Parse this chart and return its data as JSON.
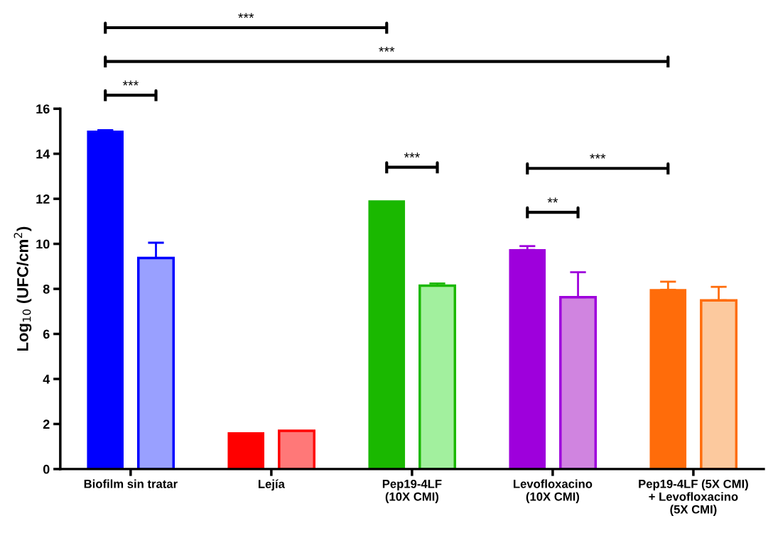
{
  "chart_data": {
    "type": "bar",
    "ylabel": "Log$_{10}$ (UFC/cm$^{2}$)",
    "categories": [
      "Biofilm sin tratar",
      "Lejía",
      "Pep19-4LF\n(10X CMI)",
      "Levofloxacino\n(10X CMI)",
      "Pep19-4LF (5X CMI)\n+ Levofloxacino\n(5X CMI)"
    ],
    "series": [
      {
        "colors": [
          "#0000ff",
          "#ff0000",
          "#1ab800",
          "#9e00dc",
          "#ff6c0a"
        ],
        "values": [
          15.0,
          1.6,
          11.9,
          9.73,
          7.96
        ],
        "errors": [
          [
            15.0,
            15.05
          ],
          null,
          null,
          [
            9.73,
            9.9
          ],
          [
            7.96,
            8.32
          ]
        ]
      },
      {
        "colors": [
          "#99a0ff",
          "#ff7878",
          "#a2f09e",
          "#d084e0",
          "#fcc99e"
        ],
        "values": [
          9.37,
          1.7,
          8.14,
          7.63,
          7.49
        ],
        "errors": [
          [
            9.37,
            10.05
          ],
          null,
          [
            8.14,
            8.24
          ],
          [
            7.63,
            8.74
          ],
          [
            7.49,
            8.09
          ]
        ]
      }
    ],
    "ylim": [
      0,
      16
    ],
    "yticks": [
      0,
      2,
      4,
      6,
      8,
      10,
      12,
      14,
      16
    ],
    "grid": false,
    "legend": false,
    "annotations": [
      "***",
      "***",
      "***",
      "***",
      "***",
      "**"
    ]
  }
}
